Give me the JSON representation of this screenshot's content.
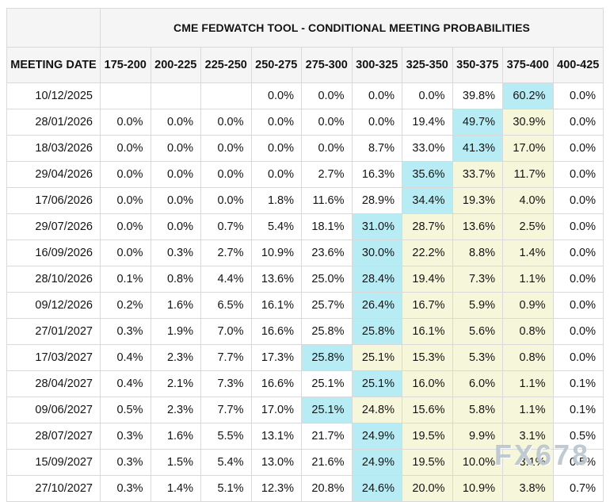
{
  "watermark": "FX678",
  "colors": {
    "highlight_max": "#b8ecf5",
    "highlight_tail": "#f6f6da",
    "header_bg": "#f5f5f5",
    "border": "#d9d9d9"
  },
  "chart_data": {
    "type": "table",
    "title": "CME FEDWATCH TOOL - CONDITIONAL MEETING PROBABILITIES",
    "columns": [
      "MEETING DATE",
      "175-200",
      "200-225",
      "225-250",
      "250-275",
      "275-300",
      "300-325",
      "325-350",
      "350-375",
      "375-400",
      "400-425"
    ],
    "rows": [
      {
        "date": "10/12/2025",
        "values": [
          "",
          "",
          "",
          "0.0%",
          "0.0%",
          "0.0%",
          "0.0%",
          "39.8%",
          "60.2%",
          "0.0%"
        ],
        "max_index": 8,
        "yellow_indices": []
      },
      {
        "date": "28/01/2026",
        "values": [
          "0.0%",
          "0.0%",
          "0.0%",
          "0.0%",
          "0.0%",
          "0.0%",
          "19.4%",
          "49.7%",
          "30.9%",
          "0.0%"
        ],
        "max_index": 7,
        "yellow_indices": [
          8
        ]
      },
      {
        "date": "18/03/2026",
        "values": [
          "0.0%",
          "0.0%",
          "0.0%",
          "0.0%",
          "0.0%",
          "8.7%",
          "33.0%",
          "41.3%",
          "17.0%",
          "0.0%"
        ],
        "max_index": 7,
        "yellow_indices": [
          8
        ]
      },
      {
        "date": "29/04/2026",
        "values": [
          "0.0%",
          "0.0%",
          "0.0%",
          "0.0%",
          "2.7%",
          "16.3%",
          "35.6%",
          "33.7%",
          "11.7%",
          "0.0%"
        ],
        "max_index": 6,
        "yellow_indices": [
          7,
          8
        ]
      },
      {
        "date": "17/06/2026",
        "values": [
          "0.0%",
          "0.0%",
          "0.0%",
          "1.8%",
          "11.6%",
          "28.9%",
          "34.4%",
          "19.3%",
          "4.0%",
          "0.0%"
        ],
        "max_index": 6,
        "yellow_indices": [
          7,
          8
        ]
      },
      {
        "date": "29/07/2026",
        "values": [
          "0.0%",
          "0.0%",
          "0.7%",
          "5.4%",
          "18.1%",
          "31.0%",
          "28.7%",
          "13.6%",
          "2.5%",
          "0.0%"
        ],
        "max_index": 5,
        "yellow_indices": [
          6,
          7,
          8
        ]
      },
      {
        "date": "16/09/2026",
        "values": [
          "0.0%",
          "0.3%",
          "2.7%",
          "10.9%",
          "23.6%",
          "30.0%",
          "22.2%",
          "8.8%",
          "1.4%",
          "0.0%"
        ],
        "max_index": 5,
        "yellow_indices": [
          6,
          7,
          8
        ]
      },
      {
        "date": "28/10/2026",
        "values": [
          "0.1%",
          "0.8%",
          "4.4%",
          "13.6%",
          "25.0%",
          "28.4%",
          "19.4%",
          "7.3%",
          "1.1%",
          "0.0%"
        ],
        "max_index": 5,
        "yellow_indices": [
          6,
          7,
          8
        ]
      },
      {
        "date": "09/12/2026",
        "values": [
          "0.2%",
          "1.6%",
          "6.5%",
          "16.1%",
          "25.7%",
          "26.4%",
          "16.7%",
          "5.9%",
          "0.9%",
          "0.0%"
        ],
        "max_index": 5,
        "yellow_indices": [
          6,
          7,
          8
        ]
      },
      {
        "date": "27/01/2027",
        "values": [
          "0.3%",
          "1.9%",
          "7.0%",
          "16.6%",
          "25.8%",
          "25.8%",
          "16.1%",
          "5.6%",
          "0.8%",
          "0.0%"
        ],
        "max_index": 5,
        "yellow_indices": [
          6,
          7,
          8
        ]
      },
      {
        "date": "17/03/2027",
        "values": [
          "0.4%",
          "2.3%",
          "7.7%",
          "17.3%",
          "25.8%",
          "25.1%",
          "15.3%",
          "5.3%",
          "0.8%",
          "0.0%"
        ],
        "max_index": 4,
        "yellow_indices": [
          5,
          6,
          7,
          8
        ]
      },
      {
        "date": "28/04/2027",
        "values": [
          "0.4%",
          "2.1%",
          "7.3%",
          "16.6%",
          "25.1%",
          "25.1%",
          "16.0%",
          "6.0%",
          "1.1%",
          "0.1%"
        ],
        "max_index": 5,
        "yellow_indices": [
          6,
          7,
          8
        ]
      },
      {
        "date": "09/06/2027",
        "values": [
          "0.5%",
          "2.3%",
          "7.7%",
          "17.0%",
          "25.1%",
          "24.8%",
          "15.6%",
          "5.8%",
          "1.1%",
          "0.1%"
        ],
        "max_index": 4,
        "yellow_indices": [
          5,
          6,
          7,
          8
        ]
      },
      {
        "date": "28/07/2027",
        "values": [
          "0.3%",
          "1.6%",
          "5.5%",
          "13.1%",
          "21.7%",
          "24.9%",
          "19.5%",
          "9.9%",
          "3.1%",
          "0.5%"
        ],
        "max_index": 5,
        "yellow_indices": [
          6,
          7,
          8
        ]
      },
      {
        "date": "15/09/2027",
        "values": [
          "0.3%",
          "1.5%",
          "5.4%",
          "13.0%",
          "21.6%",
          "24.9%",
          "19.5%",
          "10.0%",
          "3.1%",
          "0.5%"
        ],
        "max_index": 5,
        "yellow_indices": [
          6,
          7,
          8
        ]
      },
      {
        "date": "27/10/2027",
        "values": [
          "0.3%",
          "1.4%",
          "5.1%",
          "12.3%",
          "20.8%",
          "24.6%",
          "20.0%",
          "10.9%",
          "3.8%",
          "0.7%"
        ],
        "max_index": 5,
        "yellow_indices": [
          6,
          7,
          8
        ]
      }
    ]
  }
}
